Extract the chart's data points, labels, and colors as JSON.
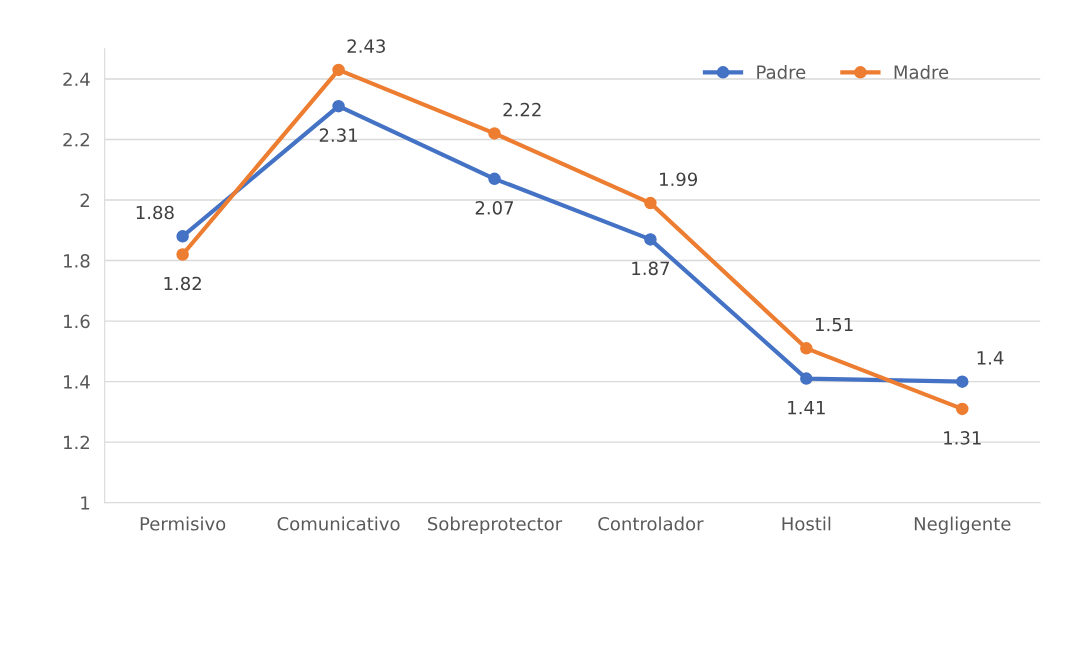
{
  "chart_data": {
    "type": "line",
    "categories": [
      "Permisivo",
      "Comunicativo",
      "Sobreprotector",
      "Controlador",
      "Hostil",
      "Negligente"
    ],
    "series": [
      {
        "name": "Padre",
        "color": "#4472c4",
        "values": [
          1.88,
          2.31,
          2.07,
          1.87,
          1.41,
          1.4
        ]
      },
      {
        "name": "Madre",
        "color": "#ed7d31",
        "values": [
          1.82,
          2.43,
          2.22,
          1.99,
          1.51,
          1.31
        ]
      }
    ],
    "ylim": [
      1,
      2.5
    ],
    "yticks": [
      1,
      1.2,
      1.4,
      1.6,
      1.8,
      2,
      2.2,
      2.4
    ],
    "grid": "y",
    "legend": "top right",
    "marker": "circle",
    "line_style": "solid",
    "data_labels": true
  }
}
